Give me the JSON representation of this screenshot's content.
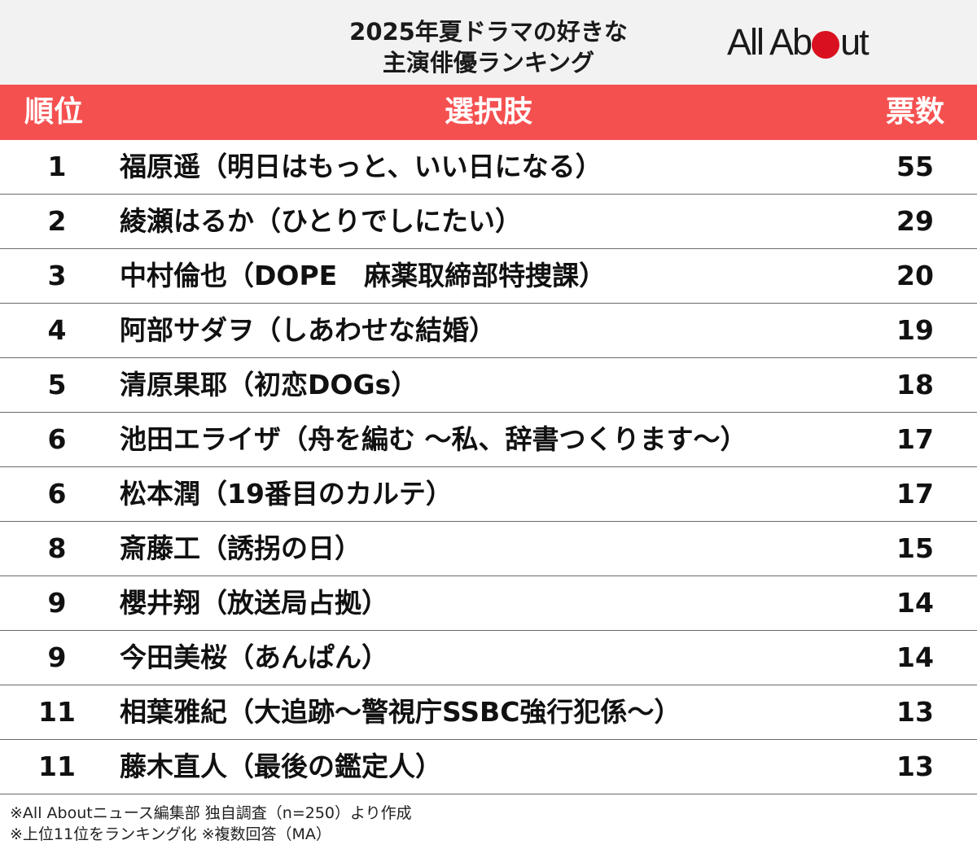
{
  "header": {
    "title_line1": "2025年夏ドラマの好きな",
    "title_line2": "主演俳優ランキング",
    "logo": {
      "text_left": "All Ab",
      "text_right": "ut",
      "dot_color": "#d9101f"
    }
  },
  "colors": {
    "header_bg": "#f2f2f2",
    "table_header_bg": "#f55050",
    "header_text": "#ffffff"
  },
  "chart_data": {
    "type": "table",
    "columns": [
      "順位",
      "選択肢",
      "票数"
    ],
    "rows": [
      {
        "rank": "1",
        "label": "福原遥（明日はもっと、いい日になる）",
        "votes": 55
      },
      {
        "rank": "2",
        "label": "綾瀬はるか（ひとりでしにたい）",
        "votes": 29
      },
      {
        "rank": "3",
        "label": "中村倫也（DOPE　麻薬取締部特捜課）",
        "votes": 20
      },
      {
        "rank": "4",
        "label": "阿部サダヲ（しあわせな結婚）",
        "votes": 19
      },
      {
        "rank": "5",
        "label": "清原果耶（初恋DOGs）",
        "votes": 18
      },
      {
        "rank": "6",
        "label": "池田エライザ（舟を編む ～私、辞書つくります～）",
        "votes": 17
      },
      {
        "rank": "6",
        "label": "松本潤（19番目のカルテ）",
        "votes": 17
      },
      {
        "rank": "8",
        "label": "斎藤工（誘拐の日）",
        "votes": 15
      },
      {
        "rank": "9",
        "label": "櫻井翔（放送局占拠）",
        "votes": 14
      },
      {
        "rank": "9",
        "label": "今田美桜（あんぱん）",
        "votes": 14
      },
      {
        "rank": "11",
        "label": "相葉雅紀（大追跡～警視庁SSBC強行犯係～）",
        "votes": 13
      },
      {
        "rank": "11",
        "label": "藤木直人（最後の鑑定人）",
        "votes": 13
      }
    ]
  },
  "footnotes": [
    "※All Aboutニュース編集部 独自調査（n=250）より作成",
    "※上位11位をランキング化 ※複数回答（MA）"
  ]
}
